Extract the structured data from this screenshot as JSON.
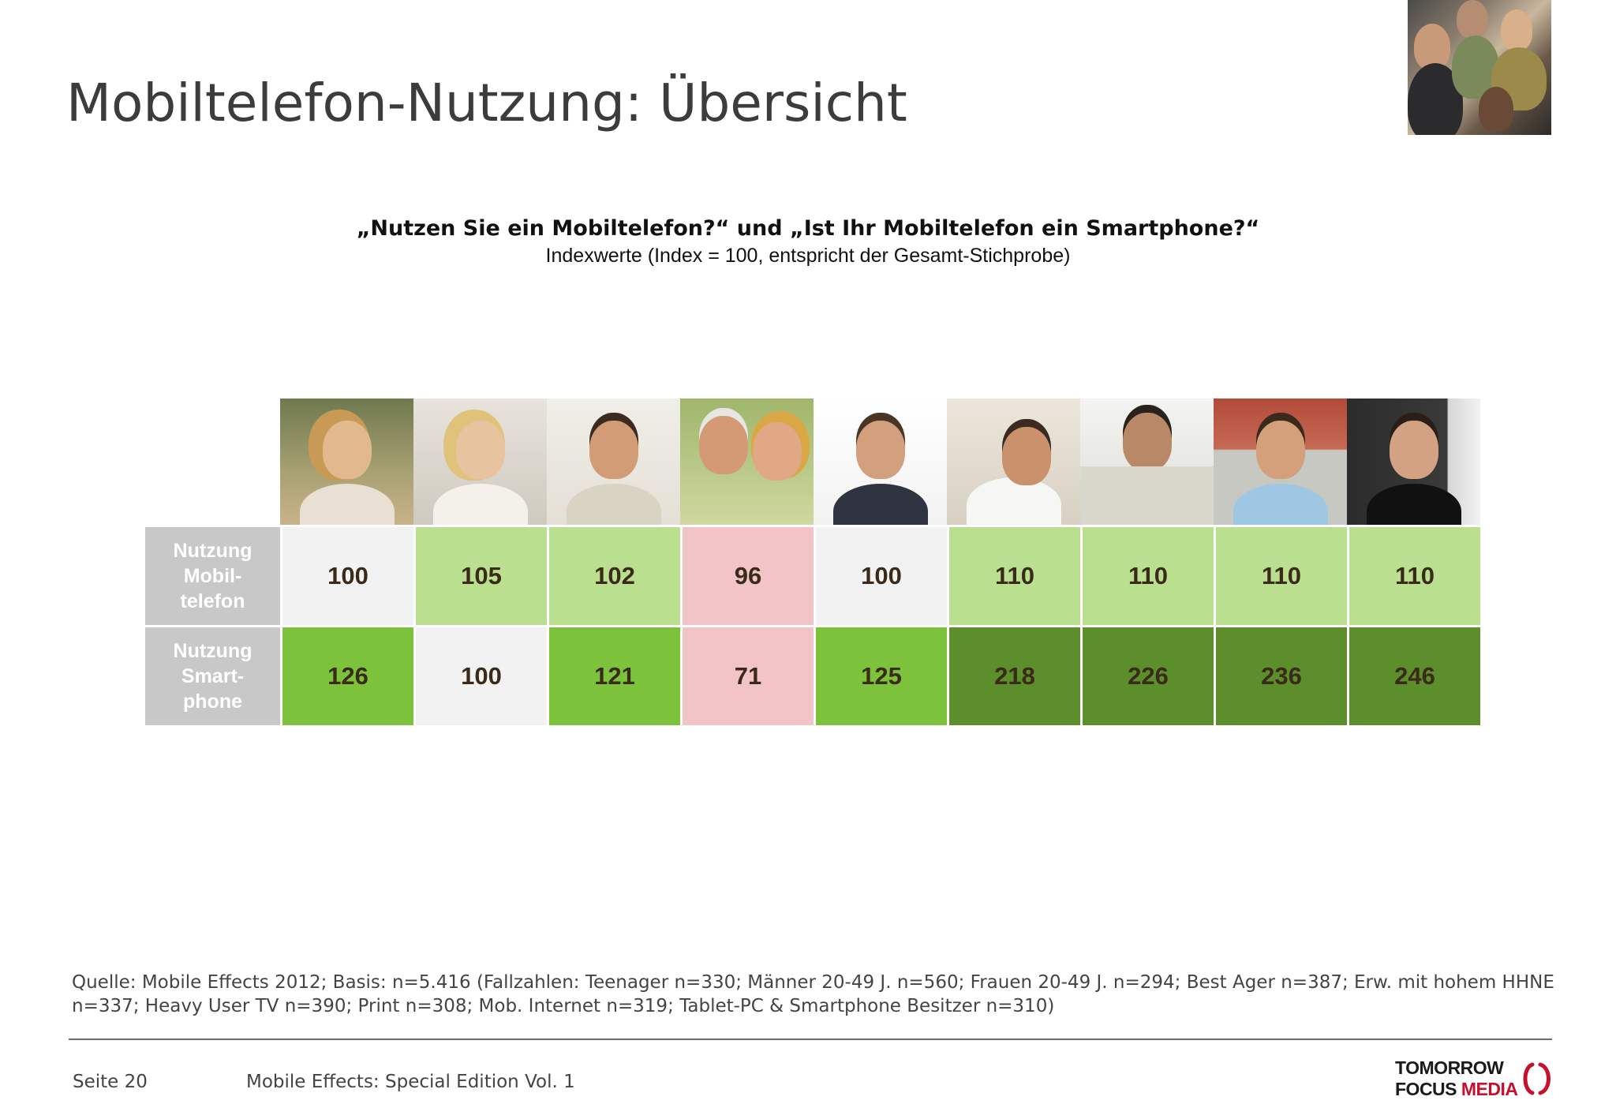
{
  "title": "Mobiltelefon-Nutzung: Übersicht",
  "question": "„Nutzen Sie ein Mobiltelefon?“ und „Ist Ihr Mobiltelefon ein Smartphone?“",
  "subtitle": "Indexwerte (Index = 100, entspricht der Gesamt-Stichprobe)",
  "colors": {
    "neutral": "#f2f2f2",
    "light_green": "#b9df8f",
    "green": "#7cc23b",
    "dark_green": "#5c8e2b",
    "pink": "#f2c4c8",
    "label_gray": "#c8c8c8"
  },
  "rows": [
    {
      "label": [
        "Nutzung",
        "Mobil-",
        "telefon"
      ],
      "values": [
        "100",
        "105",
        "102",
        "96",
        "100",
        "110",
        "110",
        "110",
        "110"
      ],
      "colors": [
        "neutral",
        "light_green",
        "light_green",
        "pink",
        "neutral",
        "light_green",
        "light_green",
        "light_green",
        "light_green"
      ]
    },
    {
      "label": [
        "Nutzung",
        "Smart-",
        "phone"
      ],
      "values": [
        "126",
        "100",
        "121",
        "71",
        "125",
        "218",
        "226",
        "236",
        "246"
      ],
      "colors": [
        "green",
        "neutral",
        "green",
        "pink",
        "green",
        "dark_green",
        "dark_green",
        "dark_green",
        "dark_green"
      ]
    }
  ],
  "source": "Quelle: Mobile Effects 2012; Basis: n=5.416 (Fallzahlen: Teenager n=330; Männer 20-49 J. n=560; Frauen 20-49 J. n=294; Best Ager n=387; Erw. mit hohem HHNE n=337; Heavy User TV n=390; Print n=308; Mob. Internet n=319; Tablet-PC & Smartphone Besitzer n=310)",
  "footer": {
    "page": "Seite 20",
    "edition": "Mobile Effects: Special Edition Vol. 1"
  },
  "logo": {
    "line1": "TOMORROW",
    "line2a": "FOCUS",
    "line2b": "MEDIA"
  }
}
